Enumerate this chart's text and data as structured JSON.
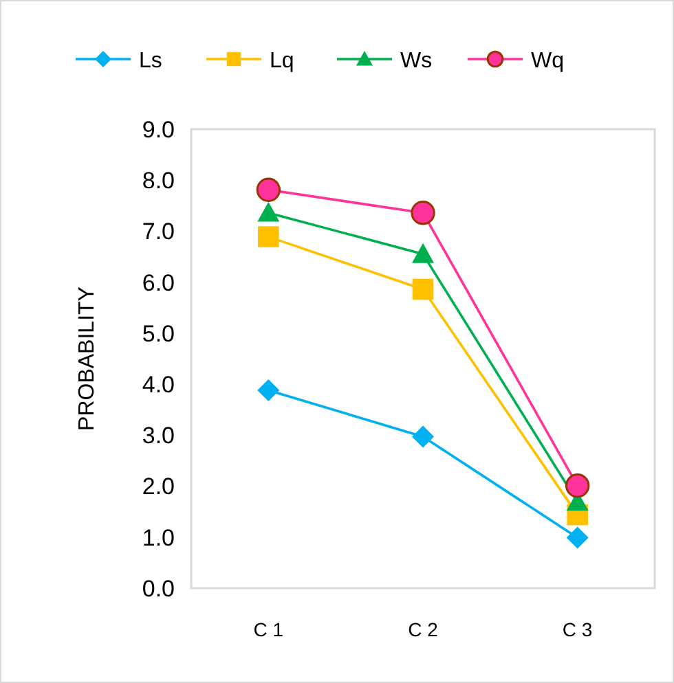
{
  "chart_data": {
    "type": "line",
    "ylabel": "PROBABILITY",
    "categories": [
      "C 1",
      "C 2",
      "C 3"
    ],
    "ylim": [
      0,
      9
    ],
    "yticks": [
      {
        "value": 0,
        "label": "0.0"
      },
      {
        "value": 1,
        "label": "1.0"
      },
      {
        "value": 2,
        "label": "2.0"
      },
      {
        "value": 3,
        "label": "3.0"
      },
      {
        "value": 4,
        "label": "4.0"
      },
      {
        "value": 5,
        "label": "5.0"
      },
      {
        "value": 6,
        "label": "6.0"
      },
      {
        "value": 7,
        "label": "7.0"
      },
      {
        "value": 8,
        "label": "8.0"
      },
      {
        "value": 9,
        "label": "9.0"
      }
    ],
    "grid": false,
    "legend": "top",
    "series": [
      {
        "name": "Ls",
        "color": "#00b0f0",
        "marker": "diamond",
        "values": [
          3.88,
          2.97,
          0.99
        ]
      },
      {
        "name": "Lq",
        "color": "#ffc000",
        "marker": "square",
        "values": [
          6.89,
          5.86,
          1.44
        ]
      },
      {
        "name": "Ws",
        "color": "#00b050",
        "marker": "triangle",
        "values": [
          7.36,
          6.55,
          1.69
        ]
      },
      {
        "name": "Wq",
        "color": "#ff3399",
        "marker": "circle",
        "values": [
          7.81,
          7.36,
          2.01
        ]
      }
    ]
  }
}
